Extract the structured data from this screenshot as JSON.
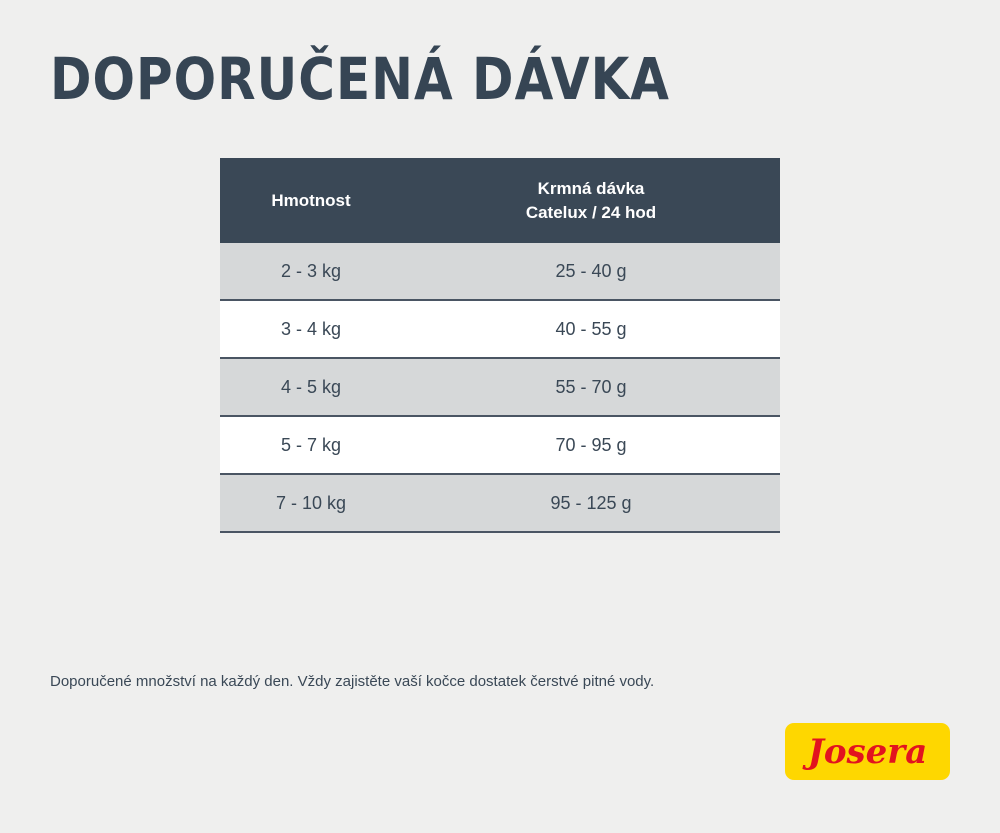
{
  "title": "DOPORUČENÁ DÁVKA",
  "table": {
    "headers": [
      "Hmotnost",
      "Krmná dávka",
      "Catelux / 24 hod"
    ],
    "rows": [
      {
        "weight": "2 - 3 kg",
        "amount": "25 - 40 g"
      },
      {
        "weight": "3 - 4 kg",
        "amount": "40 - 55 g"
      },
      {
        "weight": "4 - 5 kg",
        "amount": "55 - 70 g"
      },
      {
        "weight": "5 - 7 kg",
        "amount": "70 - 95 g"
      },
      {
        "weight": "7 - 10 kg",
        "amount": "95 - 125 g"
      }
    ]
  },
  "note": "Doporučené množství na každý den. Vždy zajistěte vaší kočce dostatek čerstvé pitné vody.",
  "logo": {
    "text": "Josera",
    "bg_color": "#fed700",
    "text_color": "#e2131f"
  },
  "colors": {
    "header": "#3a4856",
    "row_alt": "#d6d8d9"
  }
}
